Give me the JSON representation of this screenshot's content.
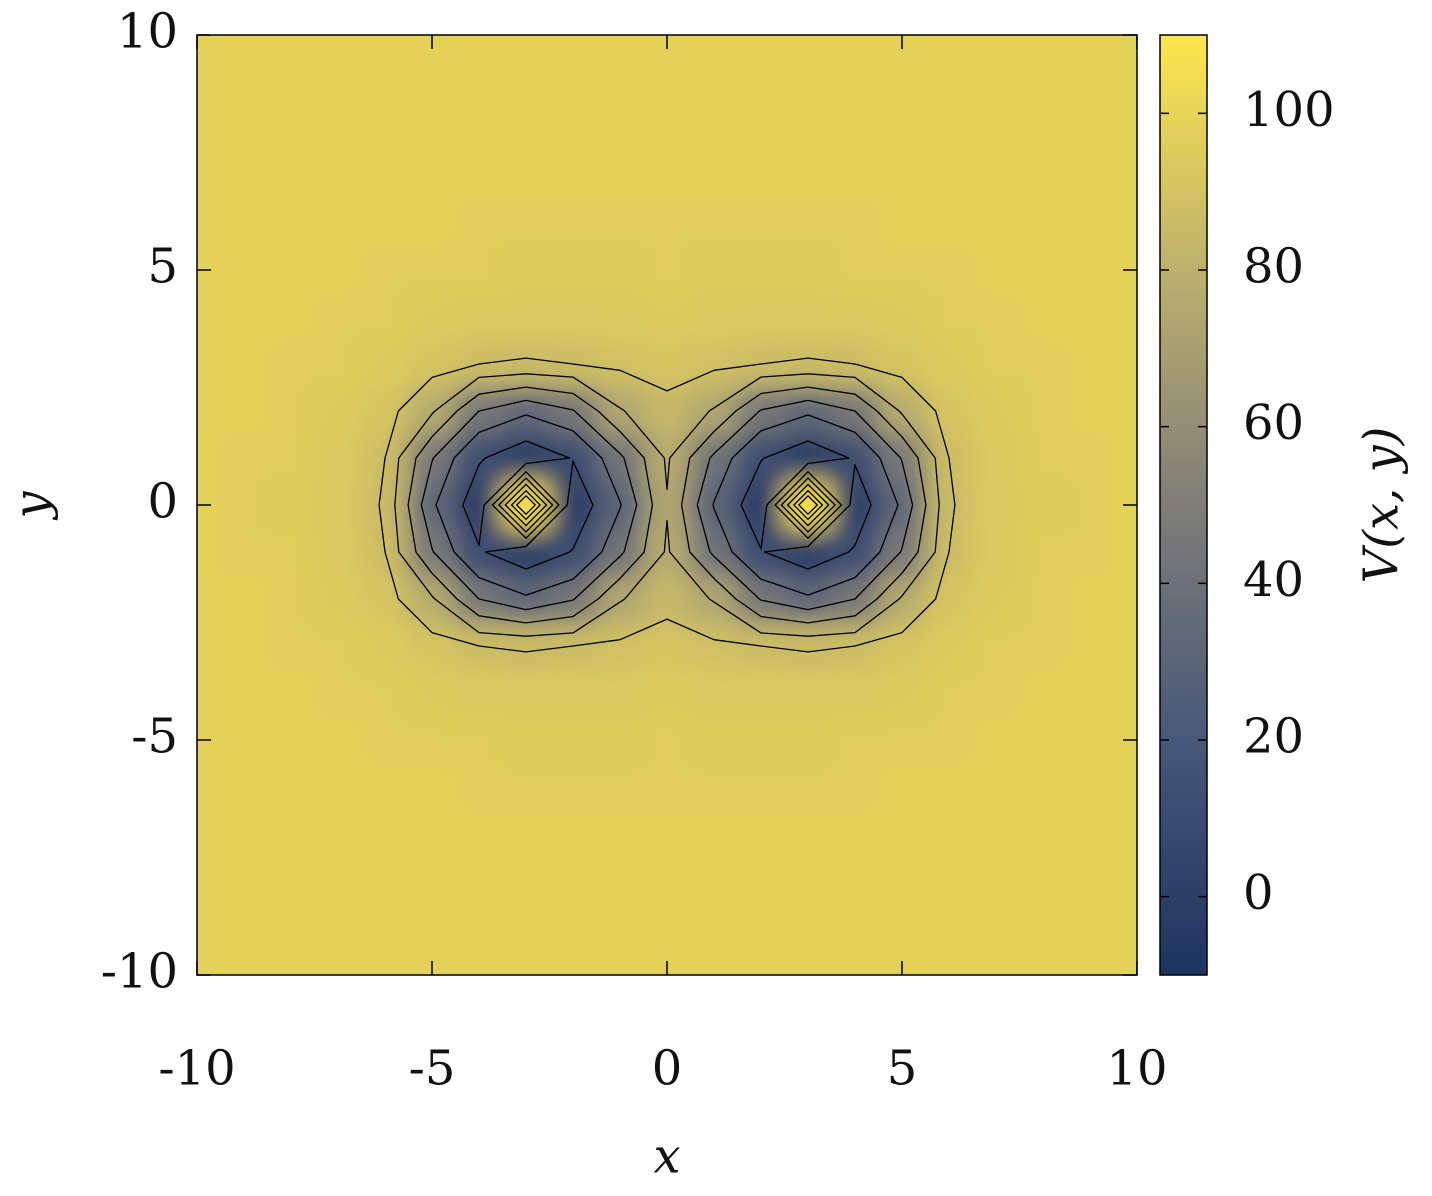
{
  "chart_data": {
    "type": "heatmap",
    "xlabel": "x",
    "ylabel": "y",
    "colorbar_label": "V(x, y)",
    "x": [
      -10,
      -9,
      -8,
      -7,
      -6,
      -5,
      -4,
      -3,
      -2,
      -1,
      0,
      1,
      2,
      3,
      4,
      5,
      6,
      7,
      8,
      9,
      10
    ],
    "y": [
      -10,
      -9,
      -8,
      -7,
      -6,
      -5,
      -4,
      -3,
      -2,
      -1,
      0,
      1,
      2,
      3,
      4,
      5,
      6,
      7,
      8,
      9,
      10
    ],
    "z": [
      [
        98,
        98,
        98,
        98,
        98,
        98,
        98,
        98,
        98,
        98,
        98,
        98,
        98,
        98,
        98,
        98,
        98,
        98,
        98,
        98,
        98
      ],
      [
        98,
        98,
        98,
        98,
        98,
        98,
        98,
        98,
        98,
        98,
        98,
        98,
        98,
        98,
        98,
        98,
        98,
        98,
        98,
        98,
        98
      ],
      [
        98,
        98,
        98,
        98,
        98,
        98,
        98,
        98,
        98,
        98,
        98,
        98,
        98,
        98,
        98,
        98,
        98,
        98,
        98,
        98,
        98
      ],
      [
        98,
        98,
        98,
        98,
        98,
        98,
        98,
        98,
        98,
        98,
        98,
        98,
        98,
        98,
        98,
        98,
        98,
        98,
        98,
        98,
        98
      ],
      [
        98,
        98,
        98,
        98,
        98,
        98,
        97,
        97,
        97,
        97,
        97,
        97,
        97,
        97,
        97,
        98,
        98,
        98,
        98,
        98,
        98
      ],
      [
        98,
        98,
        98,
        98,
        97,
        97,
        97,
        96,
        96,
        96,
        97,
        96,
        96,
        96,
        97,
        97,
        97,
        98,
        98,
        98,
        98
      ],
      [
        98,
        98,
        98,
        97,
        97,
        95,
        94,
        94,
        94,
        94,
        95,
        94,
        94,
        94,
        94,
        95,
        97,
        97,
        98,
        98,
        98
      ],
      [
        98,
        98,
        97,
        97,
        95,
        91,
        87,
        86,
        87,
        89,
        91,
        89,
        87,
        86,
        87,
        91,
        95,
        97,
        97,
        98,
        98
      ],
      [
        98,
        98,
        97,
        95,
        91,
        77,
        45,
        33,
        44,
        74,
        84,
        74,
        44,
        33,
        45,
        77,
        91,
        95,
        97,
        98,
        98
      ],
      [
        98,
        97,
        97,
        94,
        87,
        46,
        12,
        -3,
        11,
        42,
        77,
        42,
        11,
        -3,
        12,
        46,
        87,
        94,
        97,
        97,
        98
      ],
      [
        98,
        97,
        96,
        94,
        86,
        33,
        -2,
        109,
        -4,
        29,
        74,
        29,
        -4,
        109,
        -2,
        33,
        86,
        94,
        96,
        97,
        98
      ],
      [
        98,
        97,
        97,
        94,
        87,
        46,
        12,
        -3,
        11,
        42,
        77,
        42,
        11,
        -3,
        12,
        46,
        87,
        94,
        97,
        97,
        98
      ],
      [
        98,
        98,
        97,
        95,
        91,
        77,
        45,
        33,
        44,
        74,
        84,
        74,
        44,
        33,
        45,
        77,
        91,
        95,
        97,
        98,
        98
      ],
      [
        98,
        98,
        97,
        97,
        95,
        91,
        87,
        86,
        87,
        89,
        91,
        89,
        87,
        86,
        87,
        91,
        95,
        97,
        97,
        98,
        98
      ],
      [
        98,
        98,
        98,
        97,
        97,
        95,
        94,
        94,
        94,
        94,
        95,
        94,
        94,
        94,
        94,
        95,
        97,
        97,
        98,
        98,
        98
      ],
      [
        98,
        98,
        98,
        98,
        97,
        97,
        97,
        96,
        96,
        96,
        97,
        96,
        96,
        96,
        97,
        97,
        97,
        98,
        98,
        98,
        98
      ],
      [
        98,
        98,
        98,
        98,
        98,
        98,
        97,
        97,
        97,
        97,
        97,
        97,
        97,
        97,
        97,
        98,
        98,
        98,
        98,
        98,
        98
      ],
      [
        98,
        98,
        98,
        98,
        98,
        98,
        98,
        98,
        98,
        98,
        98,
        98,
        98,
        98,
        98,
        98,
        98,
        98,
        98,
        98,
        98
      ],
      [
        98,
        98,
        98,
        98,
        98,
        98,
        98,
        98,
        98,
        98,
        98,
        98,
        98,
        98,
        98,
        98,
        98,
        98,
        98,
        98,
        98
      ],
      [
        98,
        98,
        98,
        98,
        98,
        98,
        98,
        98,
        98,
        98,
        98,
        98,
        98,
        98,
        98,
        98,
        98,
        98,
        98,
        98,
        98
      ],
      [
        98,
        98,
        98,
        98,
        98,
        98,
        98,
        98,
        98,
        98,
        98,
        98,
        98,
        98,
        98,
        98,
        98,
        98,
        98,
        98,
        98
      ]
    ],
    "contour_levels": [
      10,
      30,
      45,
      60,
      75,
      87
    ],
    "colormap": [
      "#1d3461",
      "#475878",
      "#7f7d78",
      "#bdb06d",
      "#fde74c"
    ],
    "xlim": [
      -10,
      10
    ],
    "xticks": [
      -10,
      -5,
      0,
      5,
      10
    ],
    "ylim": [
      -10,
      10
    ],
    "yticks": [
      -10,
      -5,
      0,
      5,
      10
    ],
    "clim": [
      -10,
      110
    ],
    "cticks": [
      0,
      20,
      40,
      60,
      80,
      100
    ]
  }
}
